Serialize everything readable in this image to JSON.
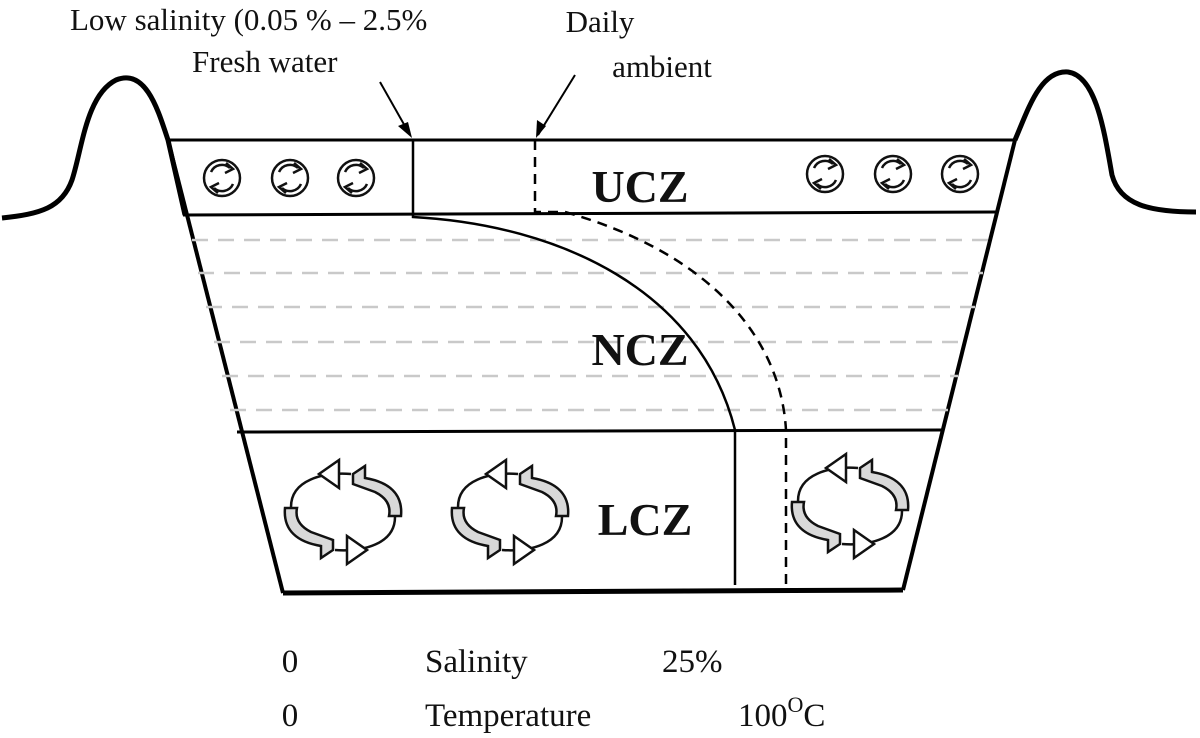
{
  "annotations": {
    "low_salinity": "Low salinity (0.05 % – 2.5%",
    "fresh_water": "Fresh water",
    "daily_line1": "Daily",
    "daily_line2": "ambient"
  },
  "zones": {
    "upper": "UCZ",
    "middle": "NCZ",
    "lower": "LCZ"
  },
  "axes": {
    "salinity": {
      "min": "0",
      "label": "Salinity",
      "max": "25%"
    },
    "temperature": {
      "min": "0",
      "label": "Temperature",
      "max": "100",
      "unit_sup": "O",
      "unit": "C"
    }
  },
  "icons": {
    "small_circulation": "circulation-arrows-icon",
    "large_circulation": "convection-loop-icon"
  }
}
